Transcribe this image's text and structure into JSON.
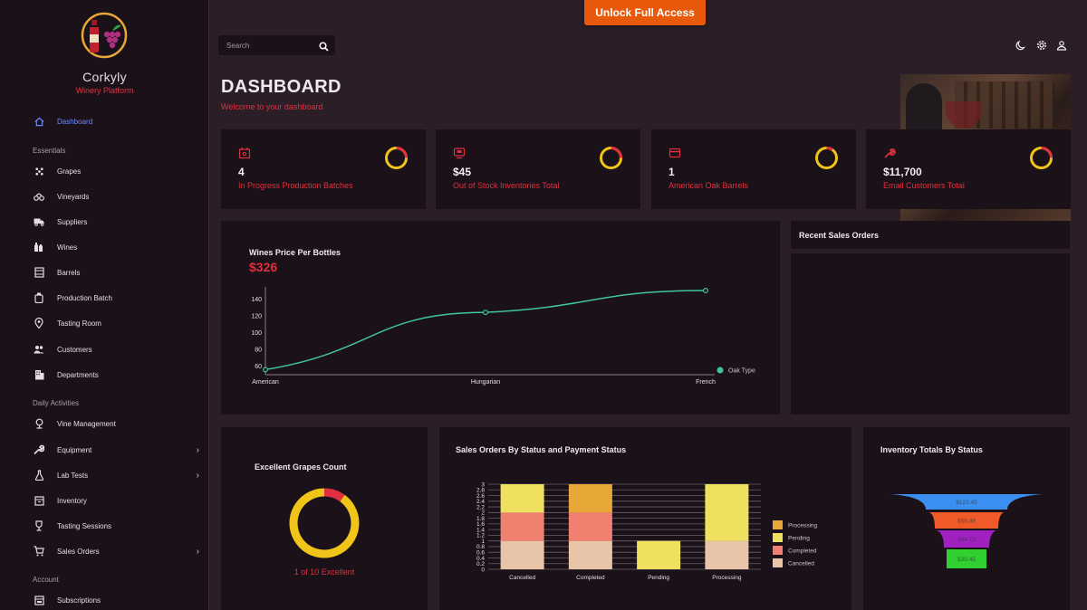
{
  "app": {
    "name": "Corkyly",
    "tagline": "Winery Platform"
  },
  "sidebar": {
    "items": [
      {
        "label": "Dashboard",
        "icon": "home-icon"
      },
      {
        "section": "Essentials"
      },
      {
        "label": "Grapes",
        "icon": "grapes-icon"
      },
      {
        "label": "Vineyards",
        "icon": "vineyard-icon"
      },
      {
        "label": "Suppliers",
        "icon": "truck-icon"
      },
      {
        "label": "Wines",
        "icon": "bottle-icon"
      },
      {
        "label": "Barrels",
        "icon": "barrel-icon"
      },
      {
        "label": "Production Batch",
        "icon": "batch-icon"
      },
      {
        "label": "Tasting Room",
        "icon": "location-pin-icon"
      },
      {
        "label": "Customers",
        "icon": "people-icon"
      },
      {
        "label": "Departments",
        "icon": "building-icon"
      },
      {
        "section": "Daily Activities"
      },
      {
        "label": "Vine Management",
        "icon": "vine-icon"
      },
      {
        "label": "Equipment",
        "icon": "wrench-icon"
      },
      {
        "label": "Lab Tests",
        "icon": "flask-icon"
      },
      {
        "label": "Inventory",
        "icon": "inventory-icon"
      },
      {
        "label": "Tasting Sessions",
        "icon": "trophy-icon"
      },
      {
        "label": "Sales Orders",
        "icon": "cart-icon"
      },
      {
        "section": "Account"
      },
      {
        "label": "Subscriptions",
        "icon": "subscription-icon"
      }
    ]
  },
  "topbar": {
    "unlock_label": "Unlock Full Access",
    "search_placeholder": "Search",
    "icons": [
      "moon-icon",
      "gear-icon",
      "user-icon"
    ]
  },
  "page": {
    "title": "DASHBOARD",
    "subtitle": "Welcome to your dashboard"
  },
  "stats": [
    {
      "value": "4",
      "label": "In Progress Production Batches",
      "icon": "calendar-icon"
    },
    {
      "value": "$45",
      "label": "Out of Stock Inventories Total",
      "icon": "monitor-icon"
    },
    {
      "value": "1",
      "label": "American Oak Barrels",
      "icon": "card-icon"
    },
    {
      "value": "$11,700",
      "label": "Email Customers Total",
      "icon": "wrench-icon"
    }
  ],
  "colors": {
    "accent": "#e0303f",
    "line": "#3fc49b",
    "ring_yellow": "#f0c419",
    "ring_red": "#e0303f",
    "unlock": "#e8590c",
    "active_nav": "#6f8cff"
  },
  "wine_chart": {
    "title": "Wines Price Per Bottles",
    "value": "$326"
  },
  "recent_sales": {
    "title": "Recent Sales Orders"
  },
  "grapes": {
    "title": "Excellent Grapes Count",
    "caption": "1 of 10 Excellent"
  },
  "sales_status": {
    "title": "Sales Orders By Status and Payment Status"
  },
  "inventory_status": {
    "title": "Inventory Totals By Status"
  },
  "chart_data": [
    {
      "type": "line",
      "categories": [
        "American",
        "Hungarian",
        "French"
      ],
      "series": [
        {
          "name": "Oak Type",
          "values": [
            56,
            124,
            150
          ]
        }
      ],
      "ylim": [
        50,
        150
      ],
      "yticks": [
        60,
        80,
        100,
        120,
        140
      ],
      "legend": "bottom-right"
    },
    {
      "type": "bar",
      "stacked": true,
      "categories": [
        "Cancelled",
        "Completed",
        "Pending",
        "Processing"
      ],
      "series": [
        {
          "name": "Cancelled",
          "color": "#e8c4a8",
          "values": [
            1,
            1,
            0,
            1
          ]
        },
        {
          "name": "Completed",
          "color": "#f08070",
          "values": [
            1,
            1,
            0,
            0
          ]
        },
        {
          "name": "Pending",
          "color": "#f0e060",
          "values": [
            1,
            0,
            1,
            2
          ]
        },
        {
          "name": "Processing",
          "color": "#e8a838",
          "values": [
            0,
            1,
            0,
            0
          ]
        }
      ],
      "ylim": [
        0,
        3
      ],
      "yticks": [
        "0",
        "0.2",
        "0.4",
        "0.6",
        "0.8",
        "1",
        "1.2",
        "1.4",
        "1.6",
        "1.8",
        "2",
        "2.2",
        "2.4",
        "2.6",
        "2.8",
        "3"
      ],
      "legend_order": [
        "Processing",
        "Pending",
        "Completed",
        "Cancelled"
      ],
      "legend": "right"
    },
    {
      "type": "funnel",
      "labels": [
        "$122.45",
        "$58.49",
        "$44.73",
        "$30.45"
      ],
      "colors": [
        "#3a8ff0",
        "#f05a28",
        "#a020c0",
        "#30d030"
      ]
    },
    {
      "type": "pie",
      "values": [
        1,
        9
      ],
      "colors": [
        "#e0303f",
        "#f0c419"
      ]
    }
  ]
}
